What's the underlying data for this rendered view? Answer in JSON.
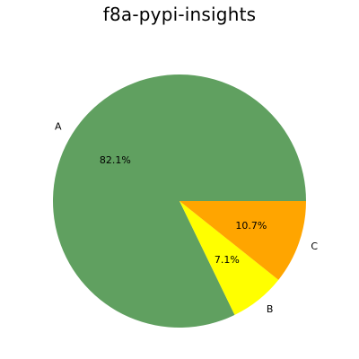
{
  "chart_data": {
    "type": "pie",
    "title": "f8a-pypi-insights",
    "labels": [
      "A",
      "B",
      "C"
    ],
    "percent_labels": [
      "82.1%",
      "7.1%",
      "10.7%"
    ],
    "values": [
      82.1,
      7.1,
      10.7
    ],
    "colors": [
      "#60a060",
      "#ffff00",
      "#ffa500"
    ],
    "start_angle_deg": 0,
    "direction": "counterclockwise",
    "legend": "none"
  }
}
